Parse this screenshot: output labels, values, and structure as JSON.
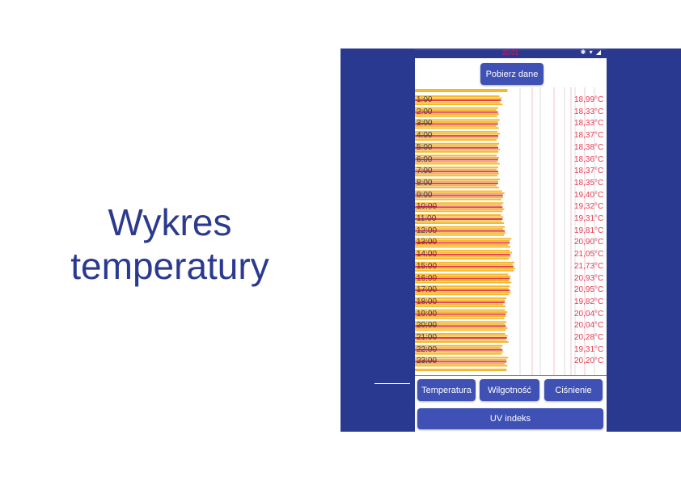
{
  "slide": {
    "title_line1": "Wykres",
    "title_line2": "temperatury"
  },
  "phone": {
    "status_time": "20:01",
    "fetch_button": "Pobierz dane",
    "bottom_buttons": [
      "Temperatura",
      "Wilgotność",
      "Ciśnienie"
    ],
    "uv_button": "UV indeks"
  },
  "colors": {
    "frame": "#2a3990",
    "button": "#3f51b5",
    "bar": "#f5b82e",
    "line": "#e53950",
    "title": "#2b3a8f"
  },
  "chart_data": {
    "type": "bar",
    "orientation": "horizontal",
    "categories": [
      "1:00",
      "2:00",
      "3:00",
      "4:00",
      "5:00",
      "6:00",
      "7:00",
      "8:00",
      "9:00",
      "10:00",
      "11:00",
      "12:00",
      "13:00",
      "14:00",
      "15:00",
      "16:00",
      "17:00",
      "18:00",
      "19:00",
      "20:00",
      "21:00",
      "22:00",
      "23:00"
    ],
    "values": [
      18.99,
      18.33,
      18.33,
      18.37,
      18.38,
      18.36,
      18.37,
      18.35,
      19.4,
      19.32,
      19.31,
      19.81,
      20.9,
      21.05,
      21.73,
      20.93,
      20.95,
      19.82,
      20.04,
      20.04,
      20.28,
      19.31,
      20.2
    ],
    "value_labels": [
      "18,99°C",
      "18,33°C",
      "18,33°C",
      "18,37°C",
      "18,38°C",
      "18,36°C",
      "18,37°C",
      "18,35°C",
      "19,40°C",
      "19,32°C",
      "19,31°C",
      "19,81°C",
      "20,90°C",
      "21,05°C",
      "21,73°C",
      "20,93°C",
      "20,95°C",
      "19,82°C",
      "20,04°C",
      "20,04°C",
      "20,28°C",
      "19,31°C",
      "20,20°C"
    ],
    "xlim": [
      0,
      33
    ],
    "grid": true
  }
}
